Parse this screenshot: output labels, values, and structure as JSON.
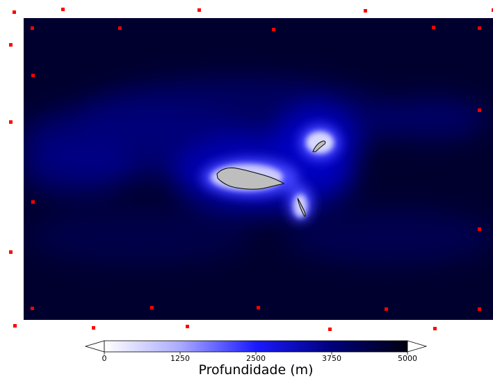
{
  "map": {
    "colors": {
      "background": "#ffffff",
      "land": "#bebebe",
      "station_marker": "#ff0000",
      "ramp": [
        "#ffffff",
        "#1a1aff",
        "#000010"
      ]
    }
  },
  "colorbar": {
    "title": "Profundidade (m)",
    "ticks": [
      "0",
      "1250",
      "2500",
      "3750",
      "5000"
    ],
    "range": [
      0,
      5000
    ],
    "unit": "m"
  }
}
